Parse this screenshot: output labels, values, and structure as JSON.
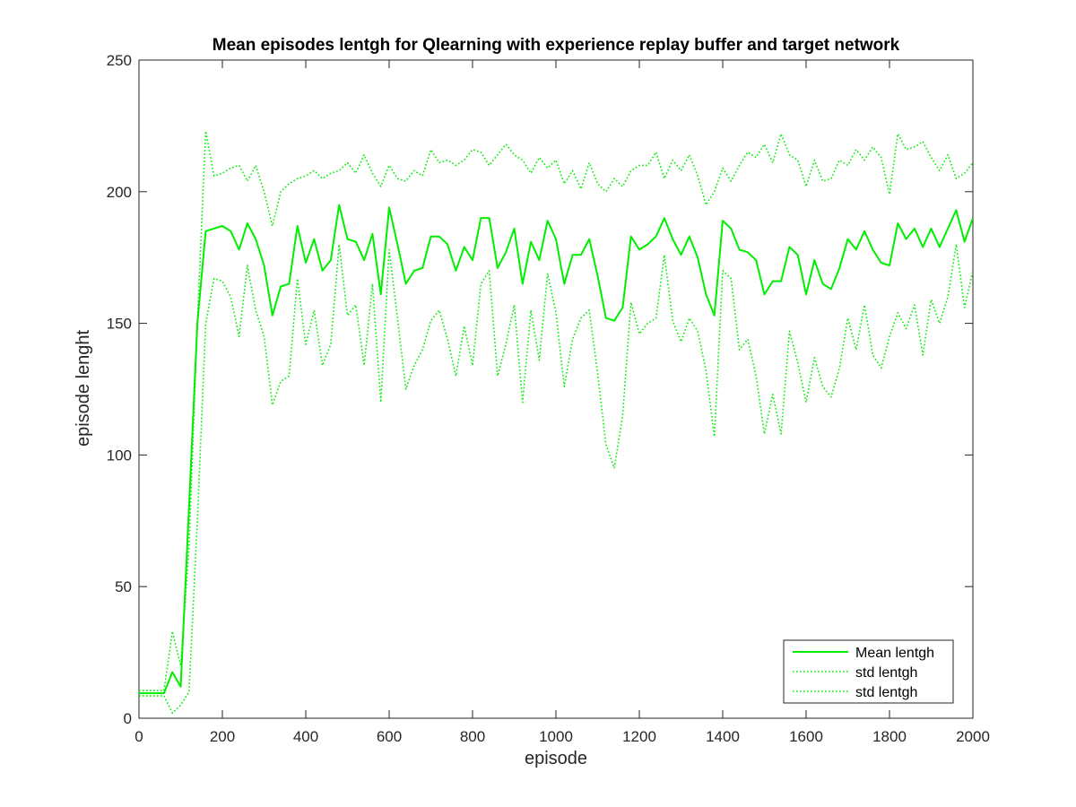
{
  "chart_data": {
    "type": "line",
    "title": "Mean episodes lentgh for Qlearning with experience replay buffer and target network",
    "xlabel": "episode",
    "ylabel": "episode lenght",
    "xlim": [
      0,
      2000
    ],
    "ylim": [
      0,
      250
    ],
    "xticks": [
      0,
      200,
      400,
      600,
      800,
      1000,
      1200,
      1400,
      1600,
      1800,
      2000
    ],
    "yticks": [
      0,
      50,
      100,
      150,
      200,
      250
    ],
    "grid": false,
    "legend_position": "bottom-right",
    "series_color": "#00ee00",
    "x": [
      0,
      20,
      40,
      60,
      80,
      100,
      120,
      140,
      160,
      180,
      200,
      220,
      240,
      260,
      280,
      300,
      320,
      340,
      360,
      380,
      400,
      420,
      440,
      460,
      480,
      500,
      520,
      540,
      560,
      580,
      600,
      620,
      640,
      660,
      680,
      700,
      720,
      740,
      760,
      780,
      800,
      820,
      840,
      860,
      880,
      900,
      920,
      940,
      960,
      980,
      1000,
      1020,
      1040,
      1060,
      1080,
      1100,
      1120,
      1140,
      1160,
      1180,
      1200,
      1220,
      1240,
      1260,
      1280,
      1300,
      1320,
      1340,
      1360,
      1380,
      1400,
      1420,
      1440,
      1460,
      1480,
      1500,
      1520,
      1540,
      1560,
      1580,
      1600,
      1620,
      1640,
      1660,
      1680,
      1700,
      1720,
      1740,
      1760,
      1780,
      1800,
      1820,
      1840,
      1860,
      1880,
      1900,
      1920,
      1940,
      1960,
      1980,
      2000
    ],
    "series": [
      {
        "name": "Mean lentgh",
        "style": "solid",
        "values": [
          9.5,
          9.5,
          9.5,
          9.5,
          17.5,
          12,
          80,
          150,
          185,
          186,
          187,
          185,
          178,
          188,
          182,
          172,
          153,
          164,
          165,
          187,
          173,
          182,
          170,
          174,
          195,
          182,
          181,
          174,
          184,
          161,
          194,
          180,
          165,
          170,
          171,
          183,
          183,
          180,
          170,
          179,
          174,
          190,
          190,
          171,
          177,
          186,
          165,
          181,
          174,
          189,
          182,
          165,
          176,
          176,
          182,
          168,
          152,
          151,
          156,
          183,
          178,
          180,
          183,
          190,
          182,
          176,
          183,
          175,
          161,
          153,
          189,
          186,
          178,
          177,
          174,
          161,
          166,
          166,
          179,
          176,
          161,
          174,
          165,
          163,
          171,
          182,
          178,
          185,
          178,
          173,
          172,
          188,
          182,
          186,
          179,
          186,
          179,
          186,
          193,
          181,
          190
        ]
      },
      {
        "name": "std lentgh",
        "style": "dotted",
        "values": [
          10.5,
          10.5,
          10.5,
          10.5,
          33,
          20,
          65,
          150,
          223,
          206,
          207,
          209,
          210,
          204,
          210,
          200,
          187,
          200,
          203,
          205,
          206,
          208,
          205,
          207,
          208,
          211,
          207,
          214,
          207,
          202,
          210,
          205,
          204,
          208,
          206,
          216,
          211,
          212,
          210,
          212,
          216,
          215,
          210,
          214,
          218,
          214,
          212,
          207,
          213,
          209,
          212,
          203,
          208,
          201,
          211,
          203,
          200,
          205,
          202,
          208,
          210,
          210,
          215,
          205,
          212,
          208,
          214,
          206,
          195,
          200,
          209,
          204,
          210,
          215,
          213,
          218,
          211,
          222,
          214,
          212,
          202,
          212,
          204,
          205,
          212,
          210,
          216,
          212,
          217,
          213,
          199,
          222,
          216,
          217,
          219,
          213,
          208,
          214,
          205,
          207,
          211
        ]
      },
      {
        "name": "std lentgh",
        "style": "dotted",
        "values": [
          8.5,
          8.5,
          8.5,
          8.5,
          2,
          5,
          10,
          75,
          150,
          167,
          166,
          160,
          145,
          172,
          155,
          145,
          119,
          128,
          130,
          167,
          142,
          155,
          134,
          142,
          180,
          153,
          157,
          134,
          165,
          120,
          178,
          152,
          125,
          134,
          140,
          151,
          155,
          144,
          130,
          149,
          134,
          165,
          170,
          130,
          142,
          157,
          120,
          155,
          136,
          169,
          154,
          126,
          144,
          152,
          155,
          131,
          104,
          95,
          115,
          158,
          146,
          150,
          152,
          176,
          151,
          143,
          152,
          147,
          132,
          107,
          170,
          167,
          140,
          144,
          130,
          108,
          123,
          108,
          147,
          135,
          120,
          137,
          126,
          122,
          133,
          152,
          140,
          157,
          138,
          133,
          145,
          154,
          148,
          157,
          138,
          159,
          150,
          160,
          180,
          156,
          170
        ]
      }
    ]
  }
}
